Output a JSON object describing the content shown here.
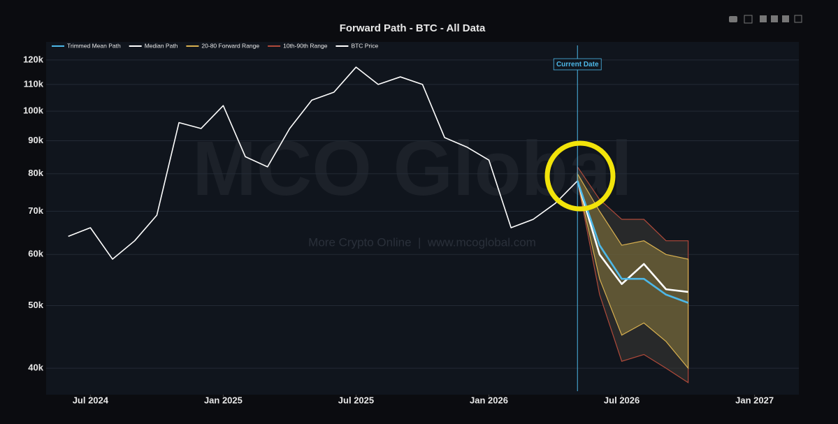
{
  "chart_data": {
    "type": "line",
    "title": "Forward Path - BTC - All Data",
    "log_y": true,
    "grid": true,
    "legend": "top-left",
    "watermark": "MCO Global",
    "watermark_subtitle": "More Crypto Online  |  www.mcoglobal.com",
    "current_date": {
      "x": "2026-05",
      "label": "Current Date",
      "color": "#4db8e8"
    },
    "xlim": [
      "2024-05",
      "2027-03"
    ],
    "xticks": [
      {
        "value": "2024-07",
        "label": "Jul 2024"
      },
      {
        "value": "2025-01",
        "label": "Jan 2025"
      },
      {
        "value": "2025-07",
        "label": "Jul 2025"
      },
      {
        "value": "2026-01",
        "label": "Jan 2026"
      },
      {
        "value": "2026-07",
        "label": "Jul 2026"
      },
      {
        "value": "2027-01",
        "label": "Jan 2027"
      }
    ],
    "ylim": [
      36400,
      128000
    ],
    "yticks": [
      {
        "value": 40000,
        "label": "40k"
      },
      {
        "value": 50000,
        "label": "50k"
      },
      {
        "value": 60000,
        "label": "60k"
      },
      {
        "value": 70000,
        "label": "70k"
      },
      {
        "value": 80000,
        "label": "80k"
      },
      {
        "value": 90000,
        "label": "90k"
      },
      {
        "value": 100000,
        "label": "100k"
      },
      {
        "value": 110000,
        "label": "110k"
      },
      {
        "value": 120000,
        "label": "120k"
      }
    ],
    "series": [
      {
        "name": "Trimmed Mean Path",
        "color": "#4db8e8",
        "x": [
          "2026-05",
          "2026-06",
          "2026-07",
          "2026-08",
          "2026-09",
          "2026-10"
        ],
        "values": [
          78000,
          62000,
          55000,
          55000,
          52000,
          50500
        ]
      },
      {
        "name": "Median Path",
        "color": "#ffffff",
        "x": [
          "2026-05",
          "2026-06",
          "2026-07",
          "2026-08",
          "2026-09",
          "2026-10"
        ],
        "values": [
          78000,
          60000,
          54000,
          58000,
          53000,
          52500
        ]
      },
      {
        "name": "20-80 Forward Range",
        "color": "#8a7a3c",
        "edge": "#d8b050",
        "x": [
          "2026-05",
          "2026-06",
          "2026-07",
          "2026-08",
          "2026-09",
          "2026-10"
        ],
        "low": [
          78000,
          55000,
          45000,
          47000,
          44000,
          40000
        ],
        "high": [
          80000,
          70000,
          62000,
          63000,
          60000,
          59000
        ]
      },
      {
        "name": "10th-90th Range",
        "color": "#3c3b34",
        "edge": "#b04a3a",
        "x": [
          "2026-05",
          "2026-06",
          "2026-07",
          "2026-08",
          "2026-09",
          "2026-10"
        ],
        "low": [
          78000,
          52000,
          41000,
          42000,
          40000,
          38000
        ],
        "high": [
          82000,
          73000,
          68000,
          68000,
          63000,
          63000
        ]
      },
      {
        "name": "BTC Price",
        "color": "#ffffff",
        "x": [
          "2024-06",
          "2024-07",
          "2024-08",
          "2024-09",
          "2024-10",
          "2024-11",
          "2024-12",
          "2025-01",
          "2025-02",
          "2025-03",
          "2025-04",
          "2025-05",
          "2025-06",
          "2025-07",
          "2025-08",
          "2025-09",
          "2025-10",
          "2025-11",
          "2025-12",
          "2026-01",
          "2026-02",
          "2026-03",
          "2026-04",
          "2026-05"
        ],
        "values": [
          64000,
          66000,
          59000,
          63000,
          69000,
          96000,
          94000,
          102000,
          85000,
          82000,
          94000,
          104000,
          107000,
          117000,
          110000,
          113000,
          110000,
          91000,
          88000,
          84000,
          66000,
          68000,
          72000,
          78000
        ]
      }
    ]
  }
}
